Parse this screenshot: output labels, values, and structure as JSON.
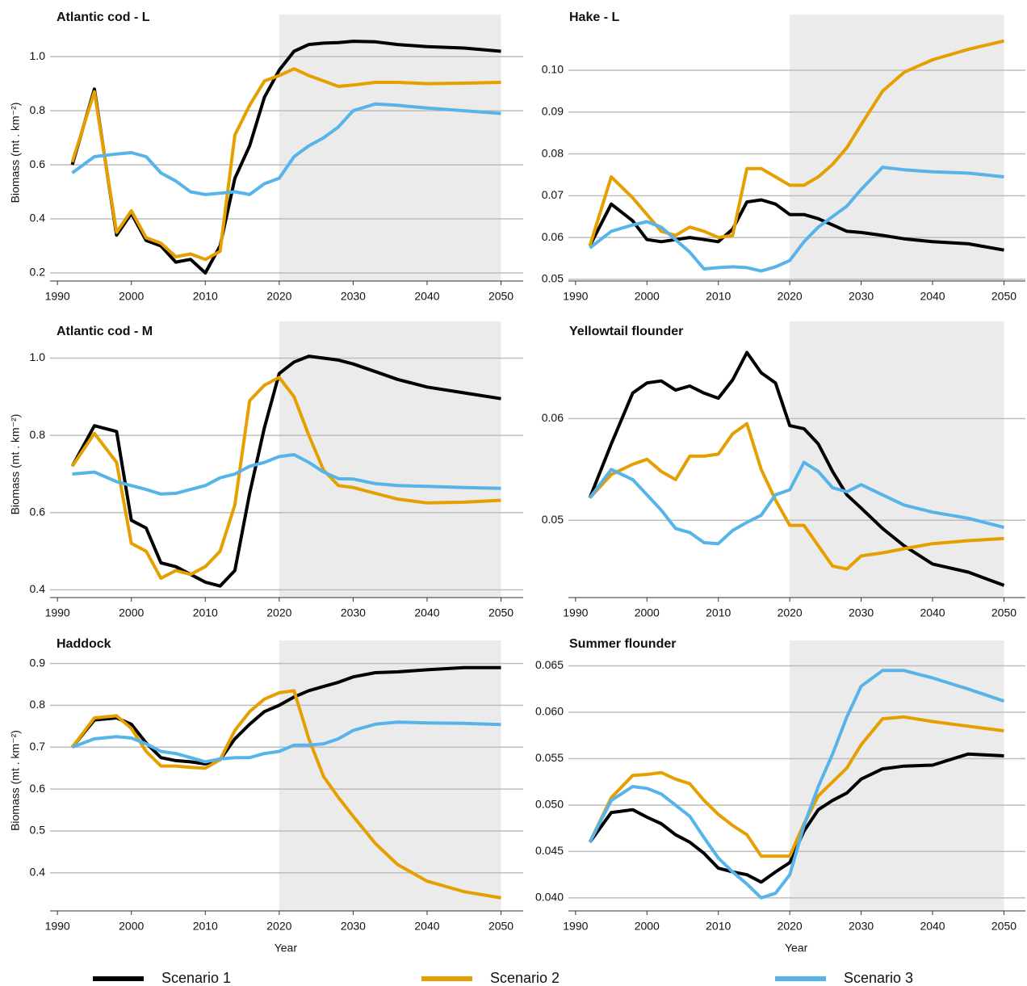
{
  "chart_data": [
    {
      "type": "line",
      "title": "Atlantic cod - L",
      "ylabel": "Biomass (mt . km⁻²)",
      "shaded_x": [
        2020,
        2050
      ],
      "x": [
        1992,
        1995,
        1998,
        2000,
        2002,
        2004,
        2006,
        2008,
        2010,
        2012,
        2014,
        2016,
        2018,
        2020,
        2022,
        2024,
        2026,
        2028,
        2030,
        2033,
        2036,
        2040,
        2045,
        2050
      ],
      "xlim": [
        1989,
        2053
      ],
      "xticks": [
        1990,
        2000,
        2010,
        2020,
        2030,
        2040,
        2050
      ],
      "ylim": [
        0.17,
        1.12
      ],
      "yticks": [
        0.2,
        0.4,
        0.6,
        0.8,
        {
          "value": 1,
          "label": "1.0"
        }
      ],
      "grid": true,
      "series": [
        {
          "name": "Scenario 1",
          "color": "#000000",
          "values": [
            0.6,
            0.88,
            0.34,
            0.42,
            0.32,
            0.3,
            0.24,
            0.25,
            0.2,
            0.3,
            0.55,
            0.67,
            0.85,
            0.95,
            1.02,
            1.045,
            1.05,
            1.052,
            1.057,
            1.055,
            1.045,
            1.037,
            1.032,
            1.02
          ]
        },
        {
          "name": "Scenario 2",
          "color": "#e69f00",
          "values": [
            0.61,
            0.87,
            0.35,
            0.43,
            0.33,
            0.31,
            0.26,
            0.27,
            0.25,
            0.28,
            0.71,
            0.82,
            0.91,
            0.93,
            0.955,
            0.93,
            0.91,
            0.89,
            0.895,
            0.905,
            0.905,
            0.9,
            0.902,
            0.905
          ]
        },
        {
          "name": "Scenario 3",
          "color": "#56b4e9",
          "values": [
            0.57,
            0.63,
            0.64,
            0.645,
            0.63,
            0.57,
            0.54,
            0.5,
            0.49,
            0.495,
            0.5,
            0.49,
            0.53,
            0.55,
            0.63,
            0.67,
            0.7,
            0.74,
            0.8,
            0.825,
            0.82,
            0.81,
            0.8,
            0.79
          ]
        }
      ]
    },
    {
      "type": "line",
      "title": "Hake - L",
      "shaded_x": [
        2020,
        2050
      ],
      "x": [
        1992,
        1995,
        1998,
        2000,
        2002,
        2004,
        2006,
        2008,
        2010,
        2012,
        2014,
        2016,
        2018,
        2020,
        2022,
        2024,
        2026,
        2028,
        2030,
        2033,
        2036,
        2040,
        2045,
        2050
      ],
      "xlim": [
        1989,
        2053
      ],
      "xticks": [
        1990,
        2000,
        2010,
        2020,
        2030,
        2040,
        2050
      ],
      "ylim": [
        0.0496,
        0.111
      ],
      "yticks": [
        0.05,
        0.06,
        0.07,
        0.08,
        0.09,
        {
          "value": 0.1,
          "label": "0.10"
        }
      ],
      "grid": true,
      "series": [
        {
          "color": "#000000",
          "values": [
            0.058,
            0.068,
            0.064,
            0.0595,
            0.059,
            0.0595,
            0.06,
            0.0595,
            0.059,
            0.062,
            0.0685,
            0.069,
            0.068,
            0.0655,
            0.0655,
            0.0645,
            0.063,
            0.0615,
            0.0612,
            0.0605,
            0.0597,
            0.059,
            0.0585,
            0.057
          ]
        },
        {
          "color": "#e69f00",
          "values": [
            0.058,
            0.0745,
            0.0695,
            0.0655,
            0.0615,
            0.0605,
            0.0625,
            0.0615,
            0.06,
            0.0605,
            0.0765,
            0.0765,
            0.0745,
            0.0725,
            0.0725,
            0.0745,
            0.0775,
            0.0815,
            0.087,
            0.095,
            0.0995,
            0.1025,
            0.105,
            0.107
          ]
        },
        {
          "color": "#56b4e9",
          "values": [
            0.0575,
            0.0615,
            0.063,
            0.0638,
            0.0625,
            0.0595,
            0.0565,
            0.0525,
            0.0528,
            0.053,
            0.0528,
            0.052,
            0.053,
            0.0545,
            0.059,
            0.0625,
            0.065,
            0.0675,
            0.0715,
            0.0768,
            0.0762,
            0.0757,
            0.0754,
            0.0745
          ]
        }
      ]
    },
    {
      "type": "line",
      "title": "Atlantic cod - M",
      "ylabel": "Biomass (mt . km⁻²)",
      "shaded_x": [
        2020,
        2050
      ],
      "x": [
        1992,
        1995,
        1998,
        2000,
        2002,
        2004,
        2006,
        2008,
        2010,
        2012,
        2014,
        2016,
        2018,
        2020,
        2022,
        2024,
        2026,
        2028,
        2030,
        2033,
        2036,
        2040,
        2045,
        2050
      ],
      "xlim": [
        1989,
        2053
      ],
      "xticks": [
        1990,
        2000,
        2010,
        2020,
        2030,
        2040,
        2050
      ],
      "ylim": [
        0.38,
        1.07
      ],
      "yticks": [
        0.4,
        0.6,
        0.8,
        {
          "value": 1,
          "label": "1.0"
        }
      ],
      "grid": true,
      "series": [
        {
          "color": "#000000",
          "values": [
            0.72,
            0.825,
            0.81,
            0.58,
            0.56,
            0.47,
            0.46,
            0.44,
            0.42,
            0.41,
            0.45,
            0.65,
            0.82,
            0.96,
            0.99,
            1.005,
            1.0,
            0.995,
            0.985,
            0.965,
            0.945,
            0.925,
            0.91,
            0.895
          ]
        },
        {
          "color": "#e69f00",
          "values": [
            0.72,
            0.805,
            0.73,
            0.52,
            0.5,
            0.43,
            0.45,
            0.44,
            0.46,
            0.5,
            0.62,
            0.89,
            0.93,
            0.95,
            0.9,
            0.8,
            0.71,
            0.67,
            0.665,
            0.65,
            0.635,
            0.625,
            0.627,
            0.632
          ]
        },
        {
          "color": "#56b4e9",
          "values": [
            0.7,
            0.705,
            0.68,
            0.67,
            0.66,
            0.648,
            0.65,
            0.66,
            0.67,
            0.69,
            0.7,
            0.72,
            0.73,
            0.745,
            0.75,
            0.73,
            0.705,
            0.688,
            0.687,
            0.675,
            0.67,
            0.668,
            0.665,
            0.663
          ]
        }
      ]
    },
    {
      "type": "line",
      "title": "Yellowtail flounder",
      "shaded_x": [
        2020,
        2050
      ],
      "x": [
        1992,
        1995,
        1998,
        2000,
        2002,
        2004,
        2006,
        2008,
        2010,
        2012,
        2014,
        2016,
        2018,
        2020,
        2022,
        2024,
        2026,
        2028,
        2030,
        2033,
        2036,
        2040,
        2045,
        2050
      ],
      "xlim": [
        1989,
        2053
      ],
      "xticks": [
        1990,
        2000,
        2010,
        2020,
        2030,
        2040,
        2050
      ],
      "ylim": [
        0.0424,
        0.0686
      ],
      "yticks": [
        0.05,
        0.06
      ],
      "grid": true,
      "series": [
        {
          "color": "#000000",
          "values": [
            0.0522,
            0.0575,
            0.0625,
            0.0635,
            0.0637,
            0.0628,
            0.0632,
            0.0625,
            0.062,
            0.0638,
            0.0665,
            0.0645,
            0.0635,
            0.0593,
            0.059,
            0.0575,
            0.0548,
            0.0525,
            0.0512,
            0.0492,
            0.0475,
            0.0457,
            0.0449,
            0.0436
          ]
        },
        {
          "color": "#e69f00",
          "values": [
            0.0522,
            0.0545,
            0.0555,
            0.056,
            0.0548,
            0.054,
            0.0563,
            0.0563,
            0.0565,
            0.0585,
            0.0595,
            0.055,
            0.052,
            0.0495,
            0.0495,
            0.0475,
            0.0455,
            0.0452,
            0.0465,
            0.0468,
            0.0472,
            0.0477,
            0.048,
            0.0482
          ]
        },
        {
          "color": "#56b4e9",
          "values": [
            0.0522,
            0.055,
            0.054,
            0.0525,
            0.051,
            0.0492,
            0.0488,
            0.0478,
            0.0477,
            0.049,
            0.0498,
            0.0505,
            0.0525,
            0.053,
            0.0557,
            0.0548,
            0.0532,
            0.0528,
            0.0535,
            0.0525,
            0.0515,
            0.0508,
            0.0502,
            0.0493
          ]
        }
      ]
    },
    {
      "type": "line",
      "title": "Haddock",
      "ylabel": "Biomass (mt . km⁻²)",
      "xlabel": "Year",
      "shaded_x": [
        2020,
        2050
      ],
      "x": [
        1992,
        1995,
        1998,
        2000,
        2002,
        2004,
        2006,
        2008,
        2010,
        2012,
        2014,
        2016,
        2018,
        2020,
        2022,
        2024,
        2026,
        2028,
        2030,
        2033,
        2036,
        2040,
        2045,
        2050
      ],
      "xlim": [
        1989,
        2053
      ],
      "xticks": [
        1990,
        2000,
        2010,
        2020,
        2030,
        2040,
        2050
      ],
      "ylim": [
        0.309,
        0.932
      ],
      "yticks": [
        0.4,
        0.5,
        0.6,
        0.7,
        0.8,
        0.9
      ],
      "grid": true,
      "series": [
        {
          "color": "#000000",
          "values": [
            0.7,
            0.765,
            0.77,
            0.755,
            0.71,
            0.675,
            0.668,
            0.665,
            0.66,
            0.67,
            0.72,
            0.755,
            0.785,
            0.8,
            0.82,
            0.835,
            0.845,
            0.855,
            0.868,
            0.878,
            0.88,
            0.885,
            0.89,
            0.89
          ]
        },
        {
          "color": "#e69f00",
          "values": [
            0.7,
            0.77,
            0.775,
            0.745,
            0.69,
            0.655,
            0.655,
            0.652,
            0.65,
            0.67,
            0.74,
            0.785,
            0.815,
            0.83,
            0.835,
            0.72,
            0.63,
            0.58,
            0.535,
            0.47,
            0.42,
            0.38,
            0.355,
            0.34
          ]
        },
        {
          "color": "#56b4e9",
          "values": [
            0.7,
            0.72,
            0.725,
            0.722,
            0.708,
            0.69,
            0.685,
            0.675,
            0.665,
            0.672,
            0.675,
            0.675,
            0.685,
            0.69,
            0.705,
            0.705,
            0.708,
            0.72,
            0.74,
            0.755,
            0.76,
            0.758,
            0.757,
            0.754
          ]
        }
      ]
    },
    {
      "type": "line",
      "title": "Summer flounder",
      "xlabel": "Year",
      "shaded_x": [
        2020,
        2050
      ],
      "x": [
        1992,
        1995,
        1998,
        2000,
        2002,
        2004,
        2006,
        2008,
        2010,
        2012,
        2014,
        2016,
        2018,
        2020,
        2022,
        2024,
        2026,
        2028,
        2030,
        2033,
        2036,
        2040,
        2045,
        2050
      ],
      "xlim": [
        1989,
        2053
      ],
      "xticks": [
        1990,
        2000,
        2010,
        2020,
        2030,
        2040,
        2050
      ],
      "ylim": [
        0.0386,
        0.0667
      ],
      "yticks": [
        {
          "value": 0.04,
          "label": "0.040"
        },
        0.045,
        {
          "value": 0.05,
          "label": "0.050"
        },
        0.055,
        {
          "value": 0.06,
          "label": "0.060"
        },
        0.065
      ],
      "grid": true,
      "series": [
        {
          "color": "#000000",
          "values": [
            0.046,
            0.0492,
            0.0495,
            0.0487,
            0.048,
            0.0468,
            0.046,
            0.0448,
            0.0432,
            0.0428,
            0.0425,
            0.0417,
            0.0428,
            0.0438,
            0.0472,
            0.0495,
            0.0505,
            0.0513,
            0.0528,
            0.0539,
            0.0542,
            0.0543,
            0.0555,
            0.0553
          ]
        },
        {
          "color": "#e69f00",
          "values": [
            0.046,
            0.0508,
            0.0532,
            0.0533,
            0.0535,
            0.0528,
            0.0523,
            0.0505,
            0.049,
            0.0478,
            0.0468,
            0.0445,
            0.0445,
            0.0445,
            0.048,
            0.051,
            0.0525,
            0.054,
            0.0565,
            0.0593,
            0.0595,
            0.059,
            0.0585,
            0.058
          ]
        },
        {
          "color": "#56b4e9",
          "values": [
            0.046,
            0.0505,
            0.052,
            0.0518,
            0.0512,
            0.05,
            0.0488,
            0.0465,
            0.0443,
            0.0428,
            0.0415,
            0.04,
            0.0405,
            0.0425,
            0.0478,
            0.052,
            0.0555,
            0.0595,
            0.0628,
            0.0645,
            0.0645,
            0.0637,
            0.0625,
            0.0612
          ]
        }
      ]
    }
  ]
}
